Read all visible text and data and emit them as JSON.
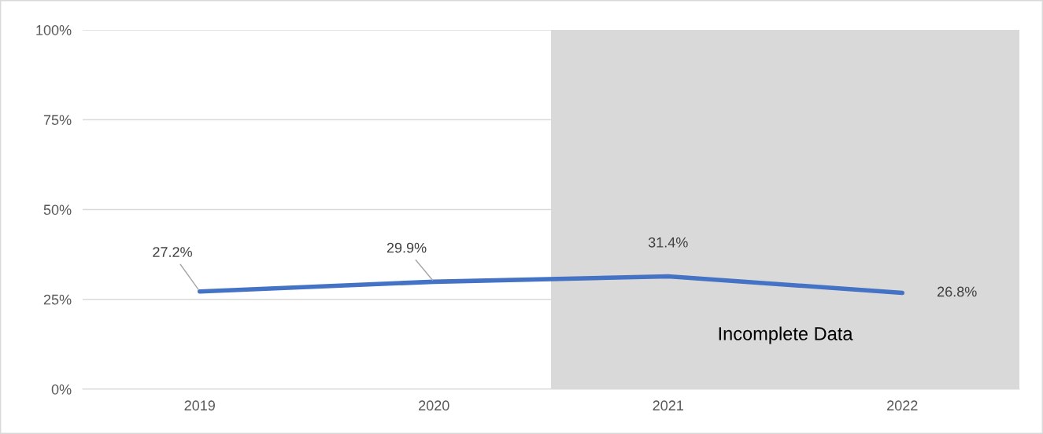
{
  "chart_data": {
    "type": "line",
    "categories": [
      "2019",
      "2020",
      "2021",
      "2022"
    ],
    "series": [
      {
        "color": "#4472c4",
        "values": [
          27.2,
          29.9,
          31.4,
          26.8
        ]
      }
    ],
    "value_labels": [
      "27.2%",
      "29.9%",
      "31.4%",
      "26.8%"
    ],
    "ylim": [
      0,
      100
    ],
    "yticks": [
      {
        "value": 0,
        "label": "0%"
      },
      {
        "value": 25,
        "label": "25%"
      },
      {
        "value": 50,
        "label": "50%"
      },
      {
        "value": 75,
        "label": "75%"
      },
      {
        "value": 100,
        "label": "100%"
      }
    ],
    "bands": [
      {
        "axis": "x",
        "from": "2021",
        "to": "2022",
        "label": "Incomplete Data",
        "color": "#d9d9d9"
      }
    ],
    "grid": "y",
    "legend": false,
    "marker": "none",
    "line_style": "solid"
  }
}
